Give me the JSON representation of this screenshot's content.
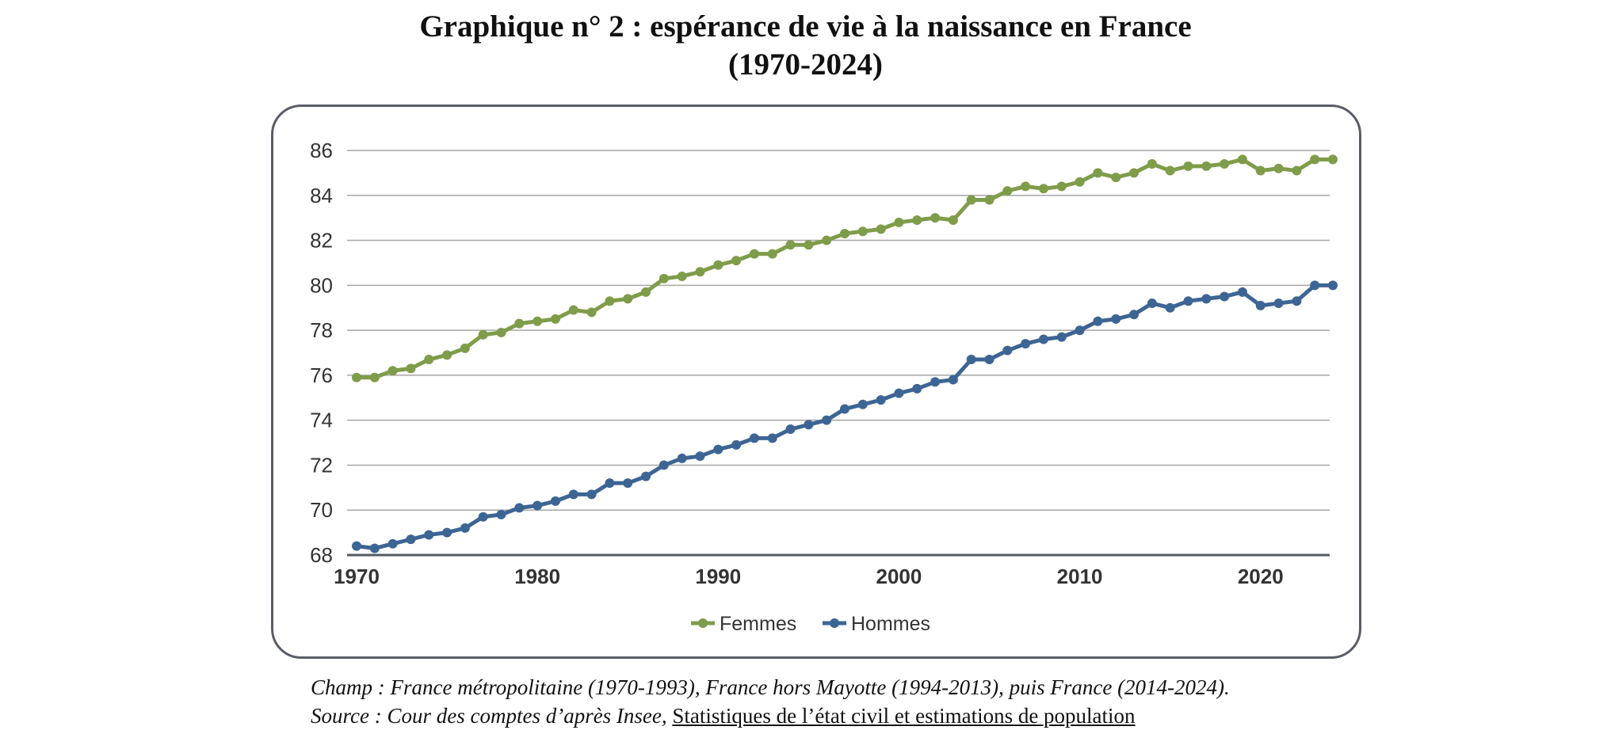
{
  "title": {
    "line1": "Graphique n° 2 : espérance de vie à la naissance en France",
    "line2": "(1970-2024)"
  },
  "notes": {
    "champ": "Champ : France métropolitaine (1970-1993), France hors Mayotte (1994-2013), puis France (2014-2024).",
    "source_prefix": "Source : Cour des comptes d’après Insee,",
    "source_link": "Statistiques de l’état civil et estimations de population"
  },
  "colors": {
    "femmes": "#7f9c4a",
    "hommes": "#3d6594",
    "grid": "#a6a6a6",
    "axis": "#555a63"
  },
  "chart_data": {
    "type": "line",
    "title": "Graphique n° 2 : espérance de vie à la naissance en France (1970-2024)",
    "xlabel": "",
    "ylabel": "",
    "xlim": [
      1970,
      2024
    ],
    "ylim": [
      68,
      86
    ],
    "yticks": [
      68,
      70,
      72,
      74,
      76,
      78,
      80,
      82,
      84,
      86
    ],
    "xticks": [
      1970,
      1980,
      1990,
      2000,
      2010,
      2020
    ],
    "grid": true,
    "legend_position": "bottom-center",
    "x": [
      1970,
      1971,
      1972,
      1973,
      1974,
      1975,
      1976,
      1977,
      1978,
      1979,
      1980,
      1981,
      1982,
      1983,
      1984,
      1985,
      1986,
      1987,
      1988,
      1989,
      1990,
      1991,
      1992,
      1993,
      1994,
      1995,
      1996,
      1997,
      1998,
      1999,
      2000,
      2001,
      2002,
      2003,
      2004,
      2005,
      2006,
      2007,
      2008,
      2009,
      2010,
      2011,
      2012,
      2013,
      2014,
      2015,
      2016,
      2017,
      2018,
      2019,
      2020,
      2021,
      2022,
      2023,
      2024
    ],
    "series": [
      {
        "name": "Femmes",
        "values": [
          75.9,
          75.9,
          76.2,
          76.3,
          76.7,
          76.9,
          77.2,
          77.8,
          77.9,
          78.3,
          78.4,
          78.5,
          78.9,
          78.8,
          79.3,
          79.4,
          79.7,
          80.3,
          80.4,
          80.6,
          80.9,
          81.1,
          81.4,
          81.4,
          81.8,
          81.8,
          82.0,
          82.3,
          82.4,
          82.5,
          82.8,
          82.9,
          83.0,
          82.9,
          83.8,
          83.8,
          84.2,
          84.4,
          84.3,
          84.4,
          84.6,
          85.0,
          84.8,
          85.0,
          85.4,
          85.1,
          85.3,
          85.3,
          85.4,
          85.6,
          85.1,
          85.2,
          85.1,
          85.6,
          85.6
        ]
      },
      {
        "name": "Hommes",
        "values": [
          68.4,
          68.3,
          68.5,
          68.7,
          68.9,
          69.0,
          69.2,
          69.7,
          69.8,
          70.1,
          70.2,
          70.4,
          70.7,
          70.7,
          71.2,
          71.2,
          71.5,
          72.0,
          72.3,
          72.4,
          72.7,
          72.9,
          73.2,
          73.2,
          73.6,
          73.8,
          74.0,
          74.5,
          74.7,
          74.9,
          75.2,
          75.4,
          75.7,
          75.8,
          76.7,
          76.7,
          77.1,
          77.4,
          77.6,
          77.7,
          78.0,
          78.4,
          78.5,
          78.7,
          79.2,
          79.0,
          79.3,
          79.4,
          79.5,
          79.7,
          79.1,
          79.2,
          79.3,
          80.0,
          80.0
        ]
      }
    ]
  }
}
